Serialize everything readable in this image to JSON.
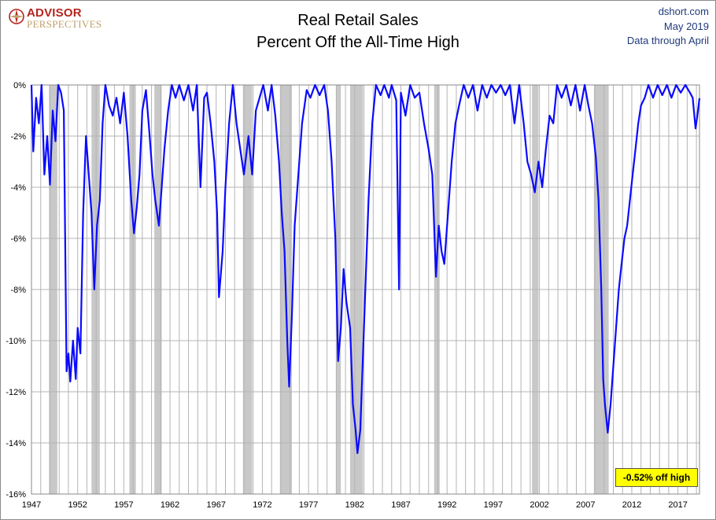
{
  "header": {
    "title_line1": "Real Retail Sales",
    "title_line2": "Percent Off the All-Time High",
    "source": "dshort.com",
    "date": "May 2019",
    "data_through": "Data through April",
    "logo_line1": "ADVISOR",
    "logo_line2": "PERSPECTIVES"
  },
  "callout": "-0.52% off high",
  "colors": {
    "series": "#0a0aff",
    "recession": "#c8c8c8",
    "grid": "#b4b4b4",
    "callout_bg": "#ffff00",
    "logo_red": "#b5251c",
    "logo_gold": "#c2a06a",
    "meta_blue": "#1f3a7a"
  },
  "chart_data": {
    "type": "line",
    "title": "Real Retail Sales — Percent Off the All-Time High",
    "x_range": [
      1947,
      2019.33
    ],
    "ylim": [
      -16,
      0
    ],
    "y_ticks": [
      "0%",
      "-2%",
      "-4%",
      "-6%",
      "-8%",
      "-10%",
      "-12%",
      "-14%",
      "-16%"
    ],
    "x_ticks": [
      "1947",
      "1952",
      "1957",
      "1962",
      "1967",
      "1972",
      "1977",
      "1982",
      "1987",
      "1992",
      "1997",
      "2002",
      "2007",
      "2012",
      "2017"
    ],
    "grid": "vertical and horizontal gridlines",
    "recessions": [
      [
        1948.9,
        1949.8
      ],
      [
        1953.5,
        1954.4
      ],
      [
        1957.6,
        1958.3
      ],
      [
        1960.3,
        1961.1
      ],
      [
        1969.9,
        1970.9
      ],
      [
        1973.9,
        1975.2
      ],
      [
        1980.0,
        1980.5
      ],
      [
        1981.5,
        1982.9
      ],
      [
        1990.6,
        1991.2
      ],
      [
        2001.2,
        2001.9
      ],
      [
        2007.9,
        2009.5
      ]
    ],
    "series": [
      {
        "values": [
          [
            1947.0,
            0
          ],
          [
            1947.2,
            -2.6
          ],
          [
            1947.5,
            -0.5
          ],
          [
            1947.8,
            -1.5
          ],
          [
            1948.1,
            0
          ],
          [
            1948.4,
            -3.5
          ],
          [
            1948.7,
            -2.0
          ],
          [
            1949.0,
            -3.9
          ],
          [
            1949.3,
            -1.0
          ],
          [
            1949.6,
            -2.2
          ],
          [
            1949.9,
            0
          ],
          [
            1950.2,
            -0.3
          ],
          [
            1950.5,
            -1.0
          ],
          [
            1950.8,
            -11.2
          ],
          [
            1951.0,
            -10.5
          ],
          [
            1951.2,
            -11.6
          ],
          [
            1951.5,
            -10.0
          ],
          [
            1951.8,
            -11.5
          ],
          [
            1952.0,
            -9.5
          ],
          [
            1952.3,
            -10.5
          ],
          [
            1952.6,
            -5.0
          ],
          [
            1952.9,
            -2.0
          ],
          [
            1953.2,
            -3.5
          ],
          [
            1953.5,
            -5.0
          ],
          [
            1953.8,
            -8.0
          ],
          [
            1954.1,
            -5.5
          ],
          [
            1954.4,
            -4.5
          ],
          [
            1954.7,
            -1.5
          ],
          [
            1955.0,
            0
          ],
          [
            1955.4,
            -0.8
          ],
          [
            1955.8,
            -1.2
          ],
          [
            1956.2,
            -0.5
          ],
          [
            1956.6,
            -1.5
          ],
          [
            1957.0,
            -0.3
          ],
          [
            1957.4,
            -2.0
          ],
          [
            1957.8,
            -4.5
          ],
          [
            1958.1,
            -5.8
          ],
          [
            1958.4,
            -4.8
          ],
          [
            1958.7,
            -3.5
          ],
          [
            1959.0,
            -1.0
          ],
          [
            1959.4,
            -0.2
          ],
          [
            1959.8,
            -2.0
          ],
          [
            1960.1,
            -3.5
          ],
          [
            1960.4,
            -4.5
          ],
          [
            1960.8,
            -5.5
          ],
          [
            1961.1,
            -4.0
          ],
          [
            1961.4,
            -2.5
          ],
          [
            1961.8,
            -1.0
          ],
          [
            1962.2,
            0
          ],
          [
            1962.6,
            -0.5
          ],
          [
            1963.0,
            0
          ],
          [
            1963.5,
            -0.6
          ],
          [
            1964.0,
            0
          ],
          [
            1964.5,
            -1.0
          ],
          [
            1964.9,
            0
          ],
          [
            1965.3,
            -4.0
          ],
          [
            1965.7,
            -0.5
          ],
          [
            1966.0,
            -0.3
          ],
          [
            1966.4,
            -1.5
          ],
          [
            1966.8,
            -3.0
          ],
          [
            1967.1,
            -5.0
          ],
          [
            1967.3,
            -8.3
          ],
          [
            1967.7,
            -6.5
          ],
          [
            1968.0,
            -4.0
          ],
          [
            1968.4,
            -1.5
          ],
          [
            1968.8,
            0
          ],
          [
            1969.2,
            -1.5
          ],
          [
            1969.6,
            -2.5
          ],
          [
            1970.0,
            -3.5
          ],
          [
            1970.5,
            -2.0
          ],
          [
            1970.9,
            -3.5
          ],
          [
            1971.3,
            -1.0
          ],
          [
            1971.7,
            -0.5
          ],
          [
            1972.1,
            0
          ],
          [
            1972.6,
            -1.0
          ],
          [
            1973.0,
            0
          ],
          [
            1973.4,
            -1.2
          ],
          [
            1973.8,
            -3.0
          ],
          [
            1974.1,
            -5.0
          ],
          [
            1974.4,
            -6.5
          ],
          [
            1974.7,
            -10.0
          ],
          [
            1974.9,
            -11.8
          ],
          [
            1975.2,
            -9.0
          ],
          [
            1975.5,
            -5.5
          ],
          [
            1975.9,
            -3.5
          ],
          [
            1976.3,
            -1.5
          ],
          [
            1976.8,
            -0.2
          ],
          [
            1977.2,
            -0.5
          ],
          [
            1977.7,
            0
          ],
          [
            1978.2,
            -0.4
          ],
          [
            1978.7,
            0
          ],
          [
            1979.1,
            -1.0
          ],
          [
            1979.5,
            -3.0
          ],
          [
            1979.9,
            -6.0
          ],
          [
            1980.2,
            -10.8
          ],
          [
            1980.5,
            -9.5
          ],
          [
            1980.8,
            -7.2
          ],
          [
            1981.1,
            -8.5
          ],
          [
            1981.5,
            -9.5
          ],
          [
            1981.8,
            -12.5
          ],
          [
            1982.1,
            -13.5
          ],
          [
            1982.3,
            -14.4
          ],
          [
            1982.6,
            -13.5
          ],
          [
            1982.9,
            -10.5
          ],
          [
            1983.2,
            -7.5
          ],
          [
            1983.5,
            -4.5
          ],
          [
            1983.9,
            -1.5
          ],
          [
            1984.3,
            0
          ],
          [
            1984.8,
            -0.4
          ],
          [
            1985.2,
            0
          ],
          [
            1985.7,
            -0.5
          ],
          [
            1986.0,
            0
          ],
          [
            1986.5,
            -0.6
          ],
          [
            1986.8,
            -8.0
          ],
          [
            1987.0,
            -0.3
          ],
          [
            1987.5,
            -1.2
          ],
          [
            1988.0,
            0
          ],
          [
            1988.5,
            -0.5
          ],
          [
            1989.0,
            -0.3
          ],
          [
            1989.5,
            -1.5
          ],
          [
            1990.0,
            -2.5
          ],
          [
            1990.4,
            -3.5
          ],
          [
            1990.8,
            -7.5
          ],
          [
            1991.1,
            -5.5
          ],
          [
            1991.4,
            -6.5
          ],
          [
            1991.7,
            -7.0
          ],
          [
            1992.1,
            -5.0
          ],
          [
            1992.5,
            -3.0
          ],
          [
            1992.9,
            -1.5
          ],
          [
            1993.3,
            -0.8
          ],
          [
            1993.8,
            0
          ],
          [
            1994.3,
            -0.5
          ],
          [
            1994.8,
            0
          ],
          [
            1995.3,
            -1.0
          ],
          [
            1995.8,
            0
          ],
          [
            1996.3,
            -0.5
          ],
          [
            1996.8,
            0
          ],
          [
            1997.3,
            -0.3
          ],
          [
            1997.8,
            0
          ],
          [
            1998.3,
            -0.4
          ],
          [
            1998.8,
            0
          ],
          [
            1999.3,
            -1.5
          ],
          [
            1999.8,
            0
          ],
          [
            2000.3,
            -1.5
          ],
          [
            2000.7,
            -3.0
          ],
          [
            2001.1,
            -3.5
          ],
          [
            2001.5,
            -4.2
          ],
          [
            2001.9,
            -3.0
          ],
          [
            2002.3,
            -4.0
          ],
          [
            2002.7,
            -2.5
          ],
          [
            2003.1,
            -1.2
          ],
          [
            2003.5,
            -1.5
          ],
          [
            2003.9,
            0
          ],
          [
            2004.4,
            -0.5
          ],
          [
            2004.9,
            0
          ],
          [
            2005.4,
            -0.8
          ],
          [
            2005.9,
            0
          ],
          [
            2006.4,
            -1.0
          ],
          [
            2006.9,
            0
          ],
          [
            2007.3,
            -0.8
          ],
          [
            2007.7,
            -1.5
          ],
          [
            2008.1,
            -2.8
          ],
          [
            2008.4,
            -4.5
          ],
          [
            2008.7,
            -8.0
          ],
          [
            2008.9,
            -11.5
          ],
          [
            2009.1,
            -12.5
          ],
          [
            2009.4,
            -13.6
          ],
          [
            2009.7,
            -12.5
          ],
          [
            2010.0,
            -11.0
          ],
          [
            2010.3,
            -9.5
          ],
          [
            2010.6,
            -8.0
          ],
          [
            2010.9,
            -7.0
          ],
          [
            2011.2,
            -6.0
          ],
          [
            2011.5,
            -5.5
          ],
          [
            2011.8,
            -4.5
          ],
          [
            2012.1,
            -3.5
          ],
          [
            2012.4,
            -2.5
          ],
          [
            2012.7,
            -1.5
          ],
          [
            2013.0,
            -0.8
          ],
          [
            2013.4,
            -0.5
          ],
          [
            2013.8,
            0
          ],
          [
            2014.3,
            -0.5
          ],
          [
            2014.8,
            0
          ],
          [
            2015.3,
            -0.4
          ],
          [
            2015.8,
            0
          ],
          [
            2016.3,
            -0.5
          ],
          [
            2016.8,
            0
          ],
          [
            2017.3,
            -0.3
          ],
          [
            2017.8,
            0
          ],
          [
            2018.3,
            -0.3
          ],
          [
            2018.6,
            -0.5
          ],
          [
            2018.9,
            -1.7
          ],
          [
            2019.1,
            -1.2
          ],
          [
            2019.33,
            -0.52
          ]
        ]
      }
    ]
  }
}
